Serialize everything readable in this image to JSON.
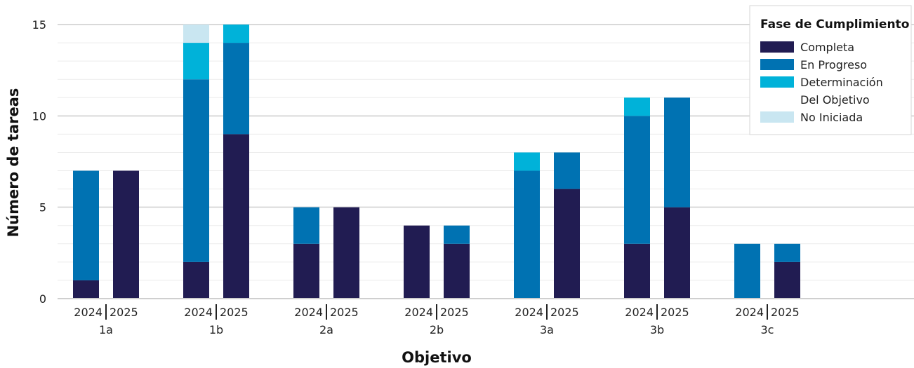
{
  "chart_data": {
    "type": "bar",
    "stacked": true,
    "categories": [
      "1a",
      "1b",
      "2a",
      "2b",
      "3a",
      "3b",
      "3c"
    ],
    "subcategories": [
      "2024",
      "2025"
    ],
    "subcategory_separator": "|",
    "xlabel": "Objetivo",
    "ylabel": "Número de tareas",
    "ylim": [
      0,
      15
    ],
    "yticks": [
      0,
      5,
      10,
      15
    ],
    "grid": true,
    "legend": {
      "title": "Fase de Cumplimiento",
      "placement": "top-right"
    },
    "series": [
      {
        "name": "Completa",
        "color": "#211C52",
        "values": [
          [
            1,
            7
          ],
          [
            2,
            9
          ],
          [
            3,
            5
          ],
          [
            4,
            3
          ],
          [
            0,
            6
          ],
          [
            3,
            5
          ],
          [
            0,
            2
          ]
        ]
      },
      {
        "name": "En Progreso",
        "color": "#0072B2",
        "values": [
          [
            6,
            0
          ],
          [
            10,
            5
          ],
          [
            2,
            0
          ],
          [
            0,
            1
          ],
          [
            7,
            2
          ],
          [
            7,
            6
          ],
          [
            3,
            1
          ]
        ]
      },
      {
        "name": "Determinación Del Objetivo",
        "label_lines": [
          "Determinación",
          "Del Objetivo"
        ],
        "color": "#00B2D9",
        "values": [
          [
            0,
            0
          ],
          [
            2,
            1
          ],
          [
            0,
            0
          ],
          [
            0,
            0
          ],
          [
            1,
            0
          ],
          [
            1,
            0
          ],
          [
            0,
            0
          ]
        ]
      },
      {
        "name": "No Iniciada",
        "color": "#C9E6F1",
        "values": [
          [
            0,
            0
          ],
          [
            1,
            0
          ],
          [
            0,
            0
          ],
          [
            0,
            0
          ],
          [
            0,
            0
          ],
          [
            0,
            0
          ],
          [
            0,
            0
          ]
        ]
      }
    ]
  }
}
